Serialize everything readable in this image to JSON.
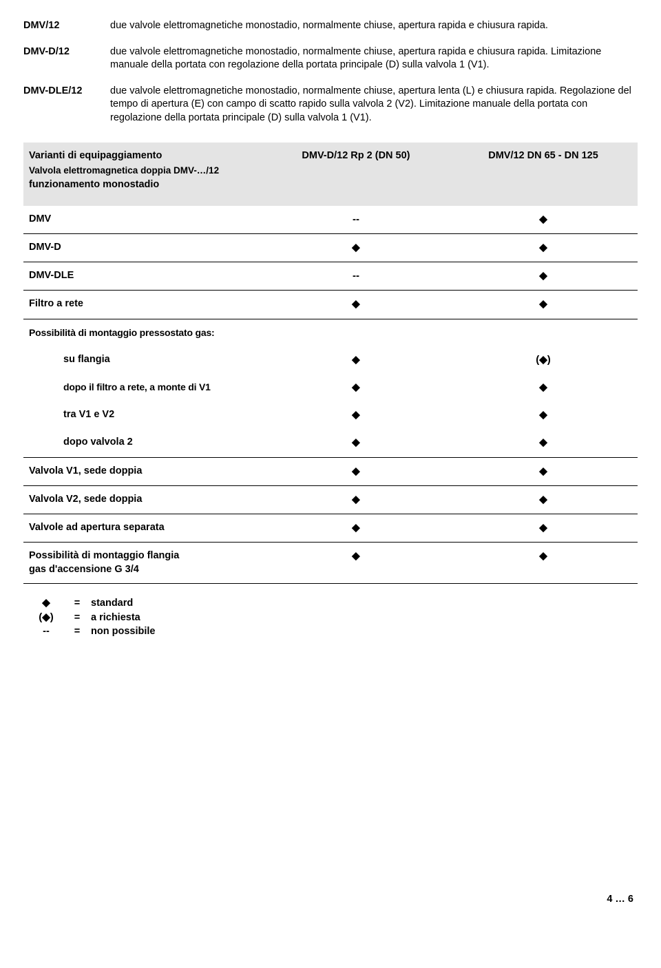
{
  "definitions": [
    {
      "code": "DMV/12",
      "text": "due valvole elettromagnetiche monostadio, normalmente chiuse, apertura rapida e chiusura rapida."
    },
    {
      "code": "DMV-D/12",
      "text": "due valvole elettromagnetiche monostadio, normalmente chiuse, apertura rapida e chiusura rapida. Limitazione manuale della portata con regolazione della portata principale (D) sulla valvola 1 (V1)."
    },
    {
      "code": "DMV-DLE/12",
      "text": "due valvole elettromagnetiche monostadio, normalmente chiuse, apertura lenta (L) e chiusura rapida. Regolazione del tempo di apertura (E) con campo di scatto rapido sulla valvola 2 (V2). Limitazione manuale della portata con regolazione della portata principale (D) sulla valvola 1 (V1)."
    }
  ],
  "tableHeader": {
    "title": "Varianti di equipaggiamento",
    "sub1": "Valvola elettromagnetica doppia DMV-…/12",
    "sub2": "funzionamento monostadio",
    "col1": "DMV-D/12 Rp 2 (DN 50)",
    "col2": "DMV/12 DN 65 - DN 125"
  },
  "symbols": {
    "diamond": "◆",
    "diamondParen": "(◆)",
    "dash": "--"
  },
  "rows": [
    {
      "label": "DMV",
      "c1": "--",
      "c2": "◆",
      "indent": false,
      "border": true
    },
    {
      "label": "DMV-D",
      "c1": "◆",
      "c2": "◆",
      "indent": false,
      "border": true
    },
    {
      "label": "DMV-DLE",
      "c1": "--",
      "c2": "◆",
      "indent": false,
      "border": true
    },
    {
      "label": "Filtro a rete",
      "c1": "◆",
      "c2": "◆",
      "indent": false,
      "border": true
    },
    {
      "label": "Possibilità di montaggio pressostato gas:",
      "c1": "",
      "c2": "",
      "indent": false,
      "border": false,
      "condensed": true
    },
    {
      "label": "su flangia",
      "c1": "◆",
      "c2": "(◆)",
      "indent": true,
      "border": false
    },
    {
      "label": "dopo il filtro a rete, a monte di V1",
      "c1": "◆",
      "c2": "◆",
      "indent": true,
      "border": false,
      "condensed": true
    },
    {
      "label": "tra V1 e V2",
      "c1": "◆",
      "c2": "◆",
      "indent": true,
      "border": false
    },
    {
      "label": "dopo valvola 2",
      "c1": "◆",
      "c2": "◆",
      "indent": true,
      "border": true
    },
    {
      "label": "Valvola V1, sede doppia",
      "c1": "◆",
      "c2": "◆",
      "indent": false,
      "border": true
    },
    {
      "label": "Valvola V2, sede doppia",
      "c1": "◆",
      "c2": "◆",
      "indent": false,
      "border": true
    },
    {
      "label": "Valvole ad apertura separata",
      "c1": "◆",
      "c2": "◆",
      "indent": false,
      "border": true
    },
    {
      "label": "Possibilità di montaggio flangia\ngas d'accensione G 3/4",
      "c1": "◆",
      "c2": "◆",
      "indent": false,
      "border": true,
      "twoline": true
    }
  ],
  "legend": [
    {
      "sym": "◆",
      "eq": "=",
      "txt": "standard"
    },
    {
      "sym": "(◆)",
      "eq": "=",
      "txt": "a richiesta"
    },
    {
      "sym": "--",
      "eq": "=",
      "txt": "non possibile"
    }
  ],
  "footer": "4 … 6"
}
